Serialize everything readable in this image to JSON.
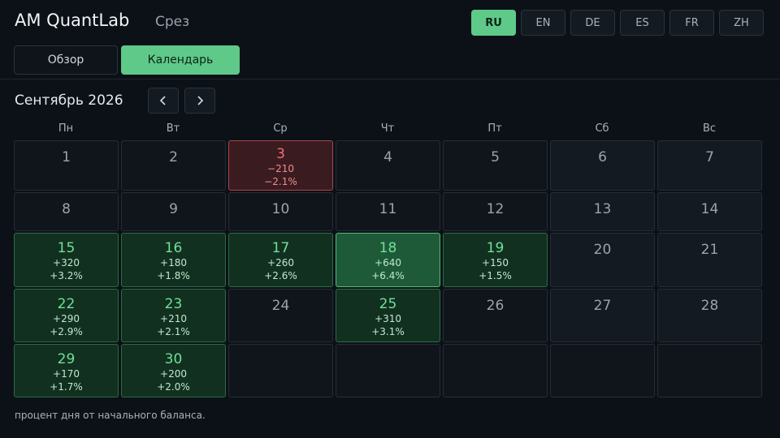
{
  "header": {
    "app_title": "AM QuantLab",
    "section": "Срез",
    "languages": [
      {
        "code": "RU",
        "active": true
      },
      {
        "code": "EN",
        "active": false
      },
      {
        "code": "DE",
        "active": false
      },
      {
        "code": "ES",
        "active": false
      },
      {
        "code": "FR",
        "active": false
      },
      {
        "code": "ZH",
        "active": false
      }
    ]
  },
  "tabs": {
    "overview": "Обзор",
    "calendar": "Календарь",
    "active": "calendar"
  },
  "calendar": {
    "month_title": "Сентябрь 2026",
    "prev_icon": "chevron-left-icon",
    "next_icon": "chevron-right-icon",
    "weekdays": [
      "Пн",
      "Вт",
      "Ср",
      "Чт",
      "Пт",
      "Сб",
      "Вс"
    ],
    "days": [
      {
        "day": "1",
        "pnl": "",
        "pct": "",
        "state": "none"
      },
      {
        "day": "2",
        "pnl": "",
        "pct": "",
        "state": "none"
      },
      {
        "day": "3",
        "pnl": "−210",
        "pct": "−2.1%",
        "state": "neg"
      },
      {
        "day": "4",
        "pnl": "",
        "pct": "",
        "state": "none"
      },
      {
        "day": "5",
        "pnl": "",
        "pct": "",
        "state": "none"
      },
      {
        "day": "6",
        "pnl": "",
        "pct": "",
        "state": "weekend"
      },
      {
        "day": "7",
        "pnl": "",
        "pct": "",
        "state": "weekend"
      },
      {
        "day": "8",
        "pnl": "",
        "pct": "",
        "state": "none"
      },
      {
        "day": "9",
        "pnl": "",
        "pct": "",
        "state": "none"
      },
      {
        "day": "10",
        "pnl": "",
        "pct": "",
        "state": "none"
      },
      {
        "day": "11",
        "pnl": "",
        "pct": "",
        "state": "none"
      },
      {
        "day": "12",
        "pnl": "",
        "pct": "",
        "state": "none"
      },
      {
        "day": "13",
        "pnl": "",
        "pct": "",
        "state": "weekend"
      },
      {
        "day": "14",
        "pnl": "",
        "pct": "",
        "state": "weekend"
      },
      {
        "day": "15",
        "pnl": "+320",
        "pct": "+3.2%",
        "state": "pos"
      },
      {
        "day": "16",
        "pnl": "+180",
        "pct": "+1.8%",
        "state": "pos"
      },
      {
        "day": "17",
        "pnl": "+260",
        "pct": "+2.6%",
        "state": "pos"
      },
      {
        "day": "18",
        "pnl": "+640",
        "pct": "+6.4%",
        "state": "best"
      },
      {
        "day": "19",
        "pnl": "+150",
        "pct": "+1.5%",
        "state": "pos"
      },
      {
        "day": "20",
        "pnl": "",
        "pct": "",
        "state": "weekend"
      },
      {
        "day": "21",
        "pnl": "",
        "pct": "",
        "state": "weekend"
      },
      {
        "day": "22",
        "pnl": "+290",
        "pct": "+2.9%",
        "state": "pos"
      },
      {
        "day": "23",
        "pnl": "+210",
        "pct": "+2.1%",
        "state": "pos"
      },
      {
        "day": "24",
        "pnl": "",
        "pct": "",
        "state": "none"
      },
      {
        "day": "25",
        "pnl": "+310",
        "pct": "+3.1%",
        "state": "pos"
      },
      {
        "day": "26",
        "pnl": "",
        "pct": "",
        "state": "none"
      },
      {
        "day": "27",
        "pnl": "",
        "pct": "",
        "state": "weekend"
      },
      {
        "day": "28",
        "pnl": "",
        "pct": "",
        "state": "weekend"
      },
      {
        "day": "29",
        "pnl": "+170",
        "pct": "+1.7%",
        "state": "pos"
      },
      {
        "day": "30",
        "pnl": "+200",
        "pct": "+2.0%",
        "state": "pos"
      }
    ]
  },
  "footnote": "процент дня от начального баланса."
}
